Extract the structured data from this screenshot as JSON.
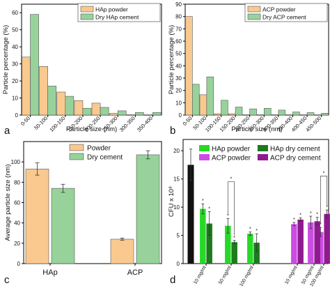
{
  "panel_letters": [
    "a",
    "b",
    "c",
    "d"
  ],
  "colors": {
    "powder": "#f9c98f",
    "cement": "#98d29b",
    "edge": "#555555",
    "hap_powder": "#27d927",
    "hap_cement": "#1d7a1d",
    "acp_powder": "#cc4ce3",
    "acp_cement": "#8f1a8f",
    "control": "#111111"
  },
  "chart_data": [
    {
      "panel": "a",
      "type": "bar",
      "xlabel": "Particle size (nm)",
      "ylabel": "Particle percentage (%)",
      "ylim": [
        0,
        65
      ],
      "yticks": [
        0,
        10,
        20,
        30,
        40,
        50,
        60
      ],
      "categories": [
        "0-50",
        "50-100",
        "100-150",
        "150-200",
        "200-250",
        "250-300",
        "300-350",
        "350-400"
      ],
      "series": [
        {
          "name": "HAp powder",
          "values": [
            34,
            28.5,
            13.5,
            8.5,
            7,
            1,
            0,
            0
          ]
        },
        {
          "name": "Dry HAp cement",
          "values": [
            59,
            17,
            11,
            4,
            4.5,
            2.5,
            1.5,
            1.5
          ]
        }
      ],
      "legend": "top-right",
      "grid": false
    },
    {
      "panel": "b",
      "type": "bar",
      "xlabel": "Particle size (nm)",
      "ylabel": "Particle percentage (%)",
      "ylim": [
        0,
        90
      ],
      "yticks": [
        0,
        10,
        20,
        30,
        40,
        50,
        60,
        70,
        80,
        90
      ],
      "categories": [
        "0-50",
        "50-100",
        "100-150",
        "150-200",
        "200-250",
        "250-300",
        "300-350",
        "350-400",
        "400-450",
        "450-500"
      ],
      "series": [
        {
          "name": "ACP powder",
          "values": [
            80,
            16.5,
            1,
            1,
            0,
            0,
            0,
            0,
            0,
            0
          ]
        },
        {
          "name": "Dry ACP cement",
          "values": [
            25,
            31,
            12,
            6.5,
            5,
            5.5,
            4,
            2.5,
            2,
            1.5
          ]
        }
      ],
      "legend": "top-right",
      "grid": false
    },
    {
      "panel": "c",
      "type": "bar",
      "ylabel": "Average particle size (nm)",
      "ylim": [
        0,
        120
      ],
      "yticks": [
        0,
        20,
        40,
        60,
        80,
        100
      ],
      "categories": [
        "HAp",
        "ACP"
      ],
      "series": [
        {
          "name": "Powder",
          "values": [
            93,
            24
          ],
          "errors": [
            6,
            1
          ]
        },
        {
          "name": "Dry cement",
          "values": [
            74,
            107
          ],
          "errors": [
            4,
            4
          ]
        }
      ],
      "legend": "top-center",
      "grid": false
    },
    {
      "panel": "d",
      "type": "bar",
      "ylabel": "CFU x 10⁸",
      "ylim": [
        0,
        22
      ],
      "yticks": [
        0,
        5,
        10,
        15,
        20
      ],
      "categories": [
        "10 mg/ml",
        "50 mg/ml",
        "100 mg/ml"
      ],
      "control": {
        "value": 17.5,
        "error": 2.8
      },
      "series": [
        {
          "name": "HAp powder",
          "values": [
            9.7,
            6.7,
            5.3
          ],
          "errors": [
            0.9,
            1.3,
            0.3
          ]
        },
        {
          "name": "HAp dry cement",
          "values": [
            7.1,
            3.8,
            3.7
          ],
          "errors": [
            2.1,
            0.3,
            1.6
          ]
        },
        {
          "name": "ACP powder",
          "values": [
            7.0,
            7.3,
            5.6
          ],
          "errors": [
            0.3,
            1.1,
            0.8
          ]
        },
        {
          "name": "ACP dry cement",
          "values": [
            7.8,
            7.5,
            8.8
          ],
          "errors": [
            0.3,
            0.7,
            0.7
          ]
        }
      ],
      "significance_marker": "*",
      "legend": "top",
      "grid": false
    }
  ]
}
